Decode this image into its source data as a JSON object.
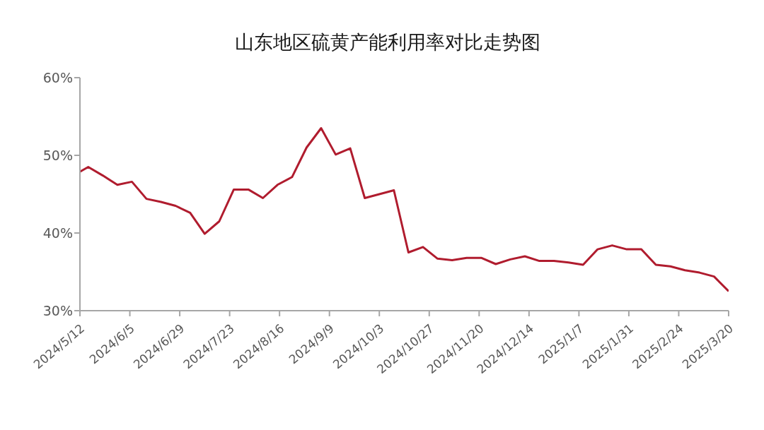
{
  "chart_data": {
    "type": "line",
    "title": "山东地区硫黄产能利用率对比走势图",
    "x": [
      "2024-05-12",
      "2024-05-16",
      "2024-05-23",
      "2024-05-30",
      "2024-06-06",
      "2024-06-13",
      "2024-06-20",
      "2024-06-27",
      "2024-07-04",
      "2024-07-11",
      "2024-07-18",
      "2024-07-25",
      "2024-08-01",
      "2024-08-08",
      "2024-08-15",
      "2024-08-22",
      "2024-08-29",
      "2024-09-05",
      "2024-09-12",
      "2024-09-19",
      "2024-09-26",
      "2024-10-03",
      "2024-10-10",
      "2024-10-17",
      "2024-10-24",
      "2024-10-31",
      "2024-11-07",
      "2024-11-14",
      "2024-11-21",
      "2024-11-28",
      "2024-12-05",
      "2024-12-12",
      "2024-12-19",
      "2024-12-26",
      "2025-01-02",
      "2025-01-09",
      "2025-01-16",
      "2025-01-23",
      "2025-01-30",
      "2025-02-06",
      "2025-02-13",
      "2025-02-20",
      "2025-02-27",
      "2025-03-06",
      "2025-03-13",
      "2025-03-20"
    ],
    "series": [
      {
        "color": "#b01c2e",
        "values": [
          47.9,
          48.5,
          47.4,
          46.2,
          46.6,
          44.4,
          44.0,
          43.5,
          42.6,
          39.9,
          41.5,
          45.6,
          45.6,
          44.5,
          46.2,
          47.2,
          51.0,
          53.5,
          50.1,
          50.9,
          44.5,
          45.0,
          45.5,
          37.5,
          38.2,
          36.7,
          36.5,
          36.8,
          36.8,
          36.0,
          36.6,
          37.0,
          36.4,
          36.4,
          36.2,
          35.9,
          37.9,
          38.4,
          37.9,
          37.9,
          35.9,
          35.7,
          35.2,
          34.9,
          34.4,
          32.5
        ]
      }
    ],
    "xlim": [
      "2024-05-12",
      "2025-03-20"
    ],
    "xticks": [
      {
        "value": "2024-05-12",
        "label": "2024/5/12"
      },
      {
        "value": "2024-06-05",
        "label": "2024/6/5"
      },
      {
        "value": "2024-06-29",
        "label": "2024/6/29"
      },
      {
        "value": "2024-07-23",
        "label": "2024/7/23"
      },
      {
        "value": "2024-08-16",
        "label": "2024/8/16"
      },
      {
        "value": "2024-09-09",
        "label": "2024/9/9"
      },
      {
        "value": "2024-10-03",
        "label": "2024/10/3"
      },
      {
        "value": "2024-10-27",
        "label": "2024/10/27"
      },
      {
        "value": "2024-11-20",
        "label": "2024/11/20"
      },
      {
        "value": "2024-12-14",
        "label": "2024/12/14"
      },
      {
        "value": "2025-01-07",
        "label": "2025/1/7"
      },
      {
        "value": "2025-01-31",
        "label": "2025/1/31"
      },
      {
        "value": "2025-02-24",
        "label": "2025/2/24"
      },
      {
        "value": "2025-03-20",
        "label": "2025/3/20"
      }
    ],
    "ylim": [
      30,
      60
    ],
    "yticks": [
      {
        "value": 30,
        "label": "30%"
      },
      {
        "value": 40,
        "label": "40%"
      },
      {
        "value": 50,
        "label": "50%"
      },
      {
        "value": 60,
        "label": "60%"
      }
    ],
    "grid": false,
    "legend": false,
    "marker": "none",
    "line_style": "solid"
  }
}
